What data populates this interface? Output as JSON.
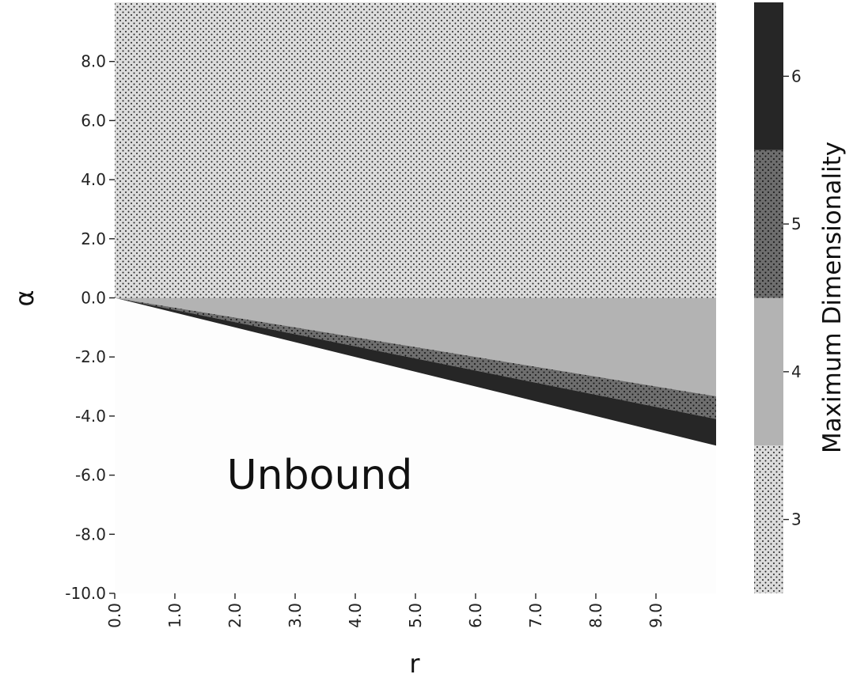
{
  "chart_data": {
    "type": "heatmap",
    "xlabel": "r",
    "ylabel": "α",
    "xlim": [
      0.0,
      10.0
    ],
    "ylim": [
      -10.0,
      10.0
    ],
    "x_ticks": [
      "0.0",
      "1.0",
      "2.0",
      "3.0",
      "4.0",
      "5.0",
      "6.0",
      "7.0",
      "8.0",
      "9.0"
    ],
    "x_tick_values": [
      0,
      1,
      2,
      3,
      4,
      5,
      6,
      7,
      8,
      9
    ],
    "y_ticks": [
      "8.0",
      "6.0",
      "4.0",
      "2.0",
      "0.0",
      "-2.0",
      "-4.0",
      "-6.0",
      "-8.0",
      "-10.0"
    ],
    "y_tick_values": [
      8,
      6,
      4,
      2,
      0,
      -2,
      -4,
      -6,
      -8,
      -10
    ],
    "regions": [
      {
        "name": "dim3",
        "value": 3,
        "alpha_lower": 0.0,
        "alpha_lower_slope": 0.0,
        "alpha_upper": 10.0
      },
      {
        "name": "dim4",
        "value": 4,
        "alpha_upper": 0.0,
        "alpha_lower_slope": -0.333
      },
      {
        "name": "dim5",
        "value": 5,
        "alpha_upper_slope": -0.333,
        "alpha_lower_slope": -0.41
      },
      {
        "name": "dim6",
        "value": 6,
        "alpha_upper_slope": -0.41,
        "alpha_lower_slope": -0.5
      },
      {
        "name": "unbound",
        "value": null,
        "alpha_upper_slope": -0.5,
        "alpha_lower": -10.0
      }
    ],
    "annotations": [
      {
        "text": "Unbound",
        "x": 3.5,
        "y": -5.9
      }
    ],
    "colorbar": {
      "label": "Maximum Dimensionality",
      "ticks": [
        "3",
        "4",
        "5",
        "6"
      ],
      "levels": [
        3,
        4,
        5,
        6
      ],
      "colors": [
        "#dcdcdc",
        "#b3b3b3",
        "#6e6e6e",
        "#262626"
      ],
      "hatched": [
        true,
        false,
        true,
        false
      ]
    },
    "colors": {
      "dim3": "#dcdcdc",
      "dim4": "#b3b3b3",
      "dim5": "#6e6e6e",
      "dim6": "#262626",
      "unbound": "#fdfdfd"
    }
  }
}
